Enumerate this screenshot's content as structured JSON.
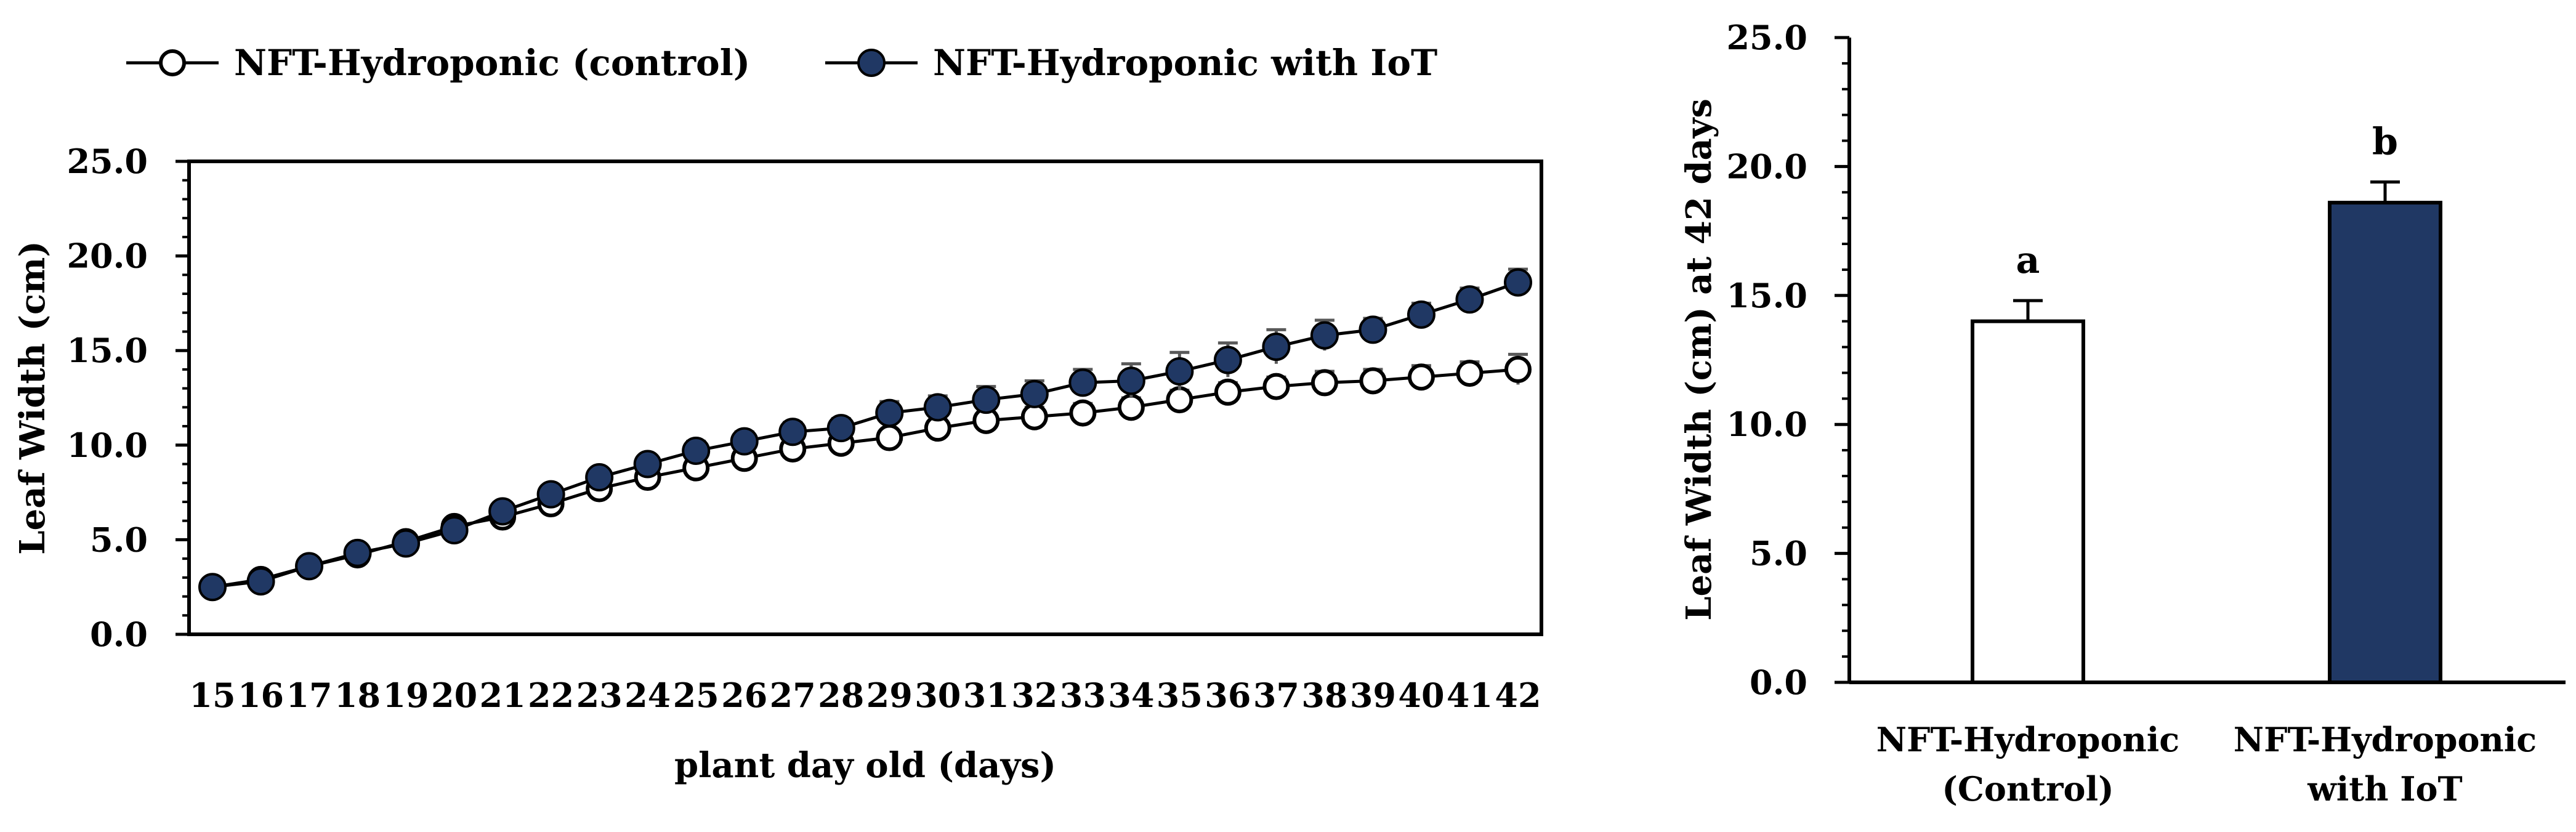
{
  "colors": {
    "control_fill": "#ffffff",
    "iot_fill": "#203864",
    "error_bar": "#595959",
    "axis": "#000000"
  },
  "chart_data": [
    {
      "type": "line",
      "xlabel": "plant day old (days)",
      "ylabel": "Leaf Width (cm)",
      "ylim": [
        0,
        25
      ],
      "y_tick_labels": [
        "0.0",
        "5.0",
        "10.0",
        "15.0",
        "20.0",
        "25.0"
      ],
      "x": [
        15,
        16,
        17,
        18,
        19,
        20,
        21,
        22,
        23,
        24,
        25,
        26,
        27,
        28,
        29,
        30,
        31,
        32,
        33,
        34,
        35,
        36,
        37,
        38,
        39,
        40,
        41,
        42
      ],
      "x_tick_labels": [
        "15",
        "16",
        "17",
        "18",
        "19",
        "20",
        "21",
        "22",
        "23",
        "24",
        "25",
        "26",
        "27",
        "28",
        "29",
        "30",
        "31",
        "32",
        "33",
        "34",
        "35",
        "36",
        "37",
        "38",
        "39",
        "40",
        "41",
        "42"
      ],
      "legend": {
        "position": "top-left",
        "entries": [
          "NFT-Hydroponic (control)",
          "NFT-Hydroponic with IoT"
        ]
      },
      "series": [
        {
          "name": "NFT-Hydroponic (control)",
          "marker": "open-circle",
          "values": [
            2.5,
            2.9,
            3.6,
            4.2,
            4.9,
            5.7,
            6.2,
            6.9,
            7.7,
            8.3,
            8.8,
            9.3,
            9.8,
            10.1,
            10.4,
            10.9,
            11.3,
            11.5,
            11.7,
            12.0,
            12.4,
            12.8,
            13.1,
            13.3,
            13.4,
            13.6,
            13.8,
            14.0
          ],
          "errors": [
            0.1,
            0.1,
            0.1,
            0.2,
            0.2,
            0.2,
            0.2,
            0.3,
            0.3,
            0.3,
            0.3,
            0.3,
            0.4,
            0.4,
            0.4,
            0.4,
            0.4,
            0.5,
            0.5,
            0.5,
            0.5,
            0.5,
            0.5,
            0.6,
            0.6,
            0.6,
            0.6,
            0.8
          ]
        },
        {
          "name": "NFT-Hydroponic with IoT",
          "marker": "filled-circle",
          "values": [
            2.5,
            2.8,
            3.6,
            4.3,
            4.8,
            5.5,
            6.5,
            7.4,
            8.3,
            9.0,
            9.7,
            10.2,
            10.7,
            10.9,
            11.7,
            12.0,
            12.4,
            12.7,
            13.3,
            13.4,
            13.9,
            14.5,
            15.2,
            15.8,
            16.1,
            16.9,
            17.7,
            18.6
          ],
          "errors": [
            0.1,
            0.1,
            0.2,
            0.2,
            0.2,
            0.2,
            0.3,
            0.3,
            0.4,
            0.4,
            0.5,
            0.5,
            0.5,
            0.5,
            0.6,
            0.6,
            0.7,
            0.7,
            0.7,
            0.9,
            1.0,
            0.9,
            0.9,
            0.8,
            0.6,
            0.6,
            0.6,
            0.7
          ]
        }
      ]
    },
    {
      "type": "bar",
      "ylabel": "Leaf Width (cm) at 42 days",
      "ylim": [
        0,
        25
      ],
      "y_tick_labels": [
        "0.0",
        "5.0",
        "10.0",
        "15.0",
        "20.0",
        "25.0"
      ],
      "categories": [
        {
          "line1": "NFT-Hydroponic",
          "line2": "(Control)"
        },
        {
          "line1": "NFT-Hydroponic",
          "line2": "with IoT"
        }
      ],
      "values": [
        14.0,
        18.6
      ],
      "errors": [
        0.8,
        0.8
      ],
      "significance_letters": [
        "a",
        "b"
      ]
    }
  ]
}
